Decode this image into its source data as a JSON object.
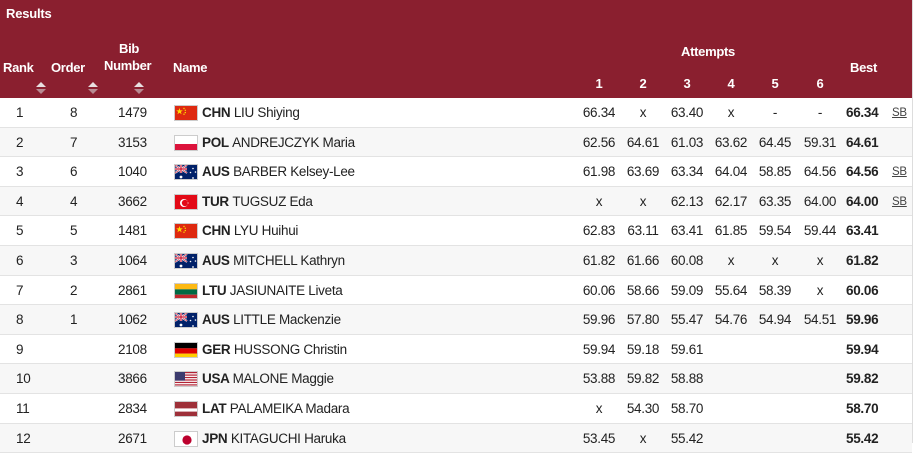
{
  "title": "Results",
  "headers": {
    "rank": "Rank",
    "order": "Order",
    "bib_line1": "Bib",
    "bib_line2": "Number",
    "name": "Name",
    "attempts": "Attempts",
    "att": [
      "1",
      "2",
      "3",
      "4",
      "5",
      "6"
    ],
    "best": "Best"
  },
  "colors": {
    "header_bg": "#8a1f2f",
    "header_text": "#ffffff"
  },
  "rows": [
    {
      "rank": "1",
      "order": "8",
      "bib": "1479",
      "flag": "china-flag",
      "noc": "CHN",
      "name": "LIU Shiying",
      "att": [
        "66.34",
        "x",
        "63.40",
        "x",
        "-",
        "-"
      ],
      "best": "66.34",
      "mark": "SB"
    },
    {
      "rank": "2",
      "order": "7",
      "bib": "3153",
      "flag": "poland-flag",
      "noc": "POL",
      "name": "ANDREJCZYK Maria",
      "att": [
        "62.56",
        "64.61",
        "61.03",
        "63.62",
        "64.45",
        "59.31"
      ],
      "best": "64.61",
      "mark": ""
    },
    {
      "rank": "3",
      "order": "6",
      "bib": "1040",
      "flag": "australia-flag",
      "noc": "AUS",
      "name": "BARBER Kelsey-Lee",
      "att": [
        "61.98",
        "63.69",
        "63.34",
        "64.04",
        "58.85",
        "64.56"
      ],
      "best": "64.56",
      "mark": "SB"
    },
    {
      "rank": "4",
      "order": "4",
      "bib": "3662",
      "flag": "turkey-flag",
      "noc": "TUR",
      "name": "TUGSUZ Eda",
      "att": [
        "x",
        "x",
        "62.13",
        "62.17",
        "63.35",
        "64.00"
      ],
      "best": "64.00",
      "mark": "SB"
    },
    {
      "rank": "5",
      "order": "5",
      "bib": "1481",
      "flag": "china-flag",
      "noc": "CHN",
      "name": "LYU Huihui",
      "att": [
        "62.83",
        "63.11",
        "63.41",
        "61.85",
        "59.54",
        "59.44"
      ],
      "best": "63.41",
      "mark": ""
    },
    {
      "rank": "6",
      "order": "3",
      "bib": "1064",
      "flag": "australia-flag",
      "noc": "AUS",
      "name": "MITCHELL Kathryn",
      "att": [
        "61.82",
        "61.66",
        "60.08",
        "x",
        "x",
        "x"
      ],
      "best": "61.82",
      "mark": ""
    },
    {
      "rank": "7",
      "order": "2",
      "bib": "2861",
      "flag": "lithuania-flag",
      "noc": "LTU",
      "name": "JASIUNAITE Liveta",
      "att": [
        "60.06",
        "58.66",
        "59.09",
        "55.64",
        "58.39",
        "x"
      ],
      "best": "60.06",
      "mark": ""
    },
    {
      "rank": "8",
      "order": "1",
      "bib": "1062",
      "flag": "australia-flag",
      "noc": "AUS",
      "name": "LITTLE Mackenzie",
      "att": [
        "59.96",
        "57.80",
        "55.47",
        "54.76",
        "54.94",
        "54.51"
      ],
      "best": "59.96",
      "mark": ""
    },
    {
      "rank": "9",
      "order": "",
      "bib": "2108",
      "flag": "germany-flag",
      "noc": "GER",
      "name": "HUSSONG Christin",
      "att": [
        "59.94",
        "59.18",
        "59.61",
        "",
        "",
        ""
      ],
      "best": "59.94",
      "mark": ""
    },
    {
      "rank": "10",
      "order": "",
      "bib": "3866",
      "flag": "usa-flag",
      "noc": "USA",
      "name": "MALONE Maggie",
      "att": [
        "53.88",
        "59.82",
        "58.88",
        "",
        "",
        ""
      ],
      "best": "59.82",
      "mark": ""
    },
    {
      "rank": "11",
      "order": "",
      "bib": "2834",
      "flag": "latvia-flag",
      "noc": "LAT",
      "name": "PALAMEIKA Madara",
      "att": [
        "x",
        "54.30",
        "58.70",
        "",
        "",
        ""
      ],
      "best": "58.70",
      "mark": ""
    },
    {
      "rank": "12",
      "order": "",
      "bib": "2671",
      "flag": "japan-flag",
      "noc": "JPN",
      "name": "KITAGUCHI Haruka",
      "att": [
        "53.45",
        "x",
        "55.42",
        "",
        "",
        ""
      ],
      "best": "55.42",
      "mark": ""
    }
  ]
}
